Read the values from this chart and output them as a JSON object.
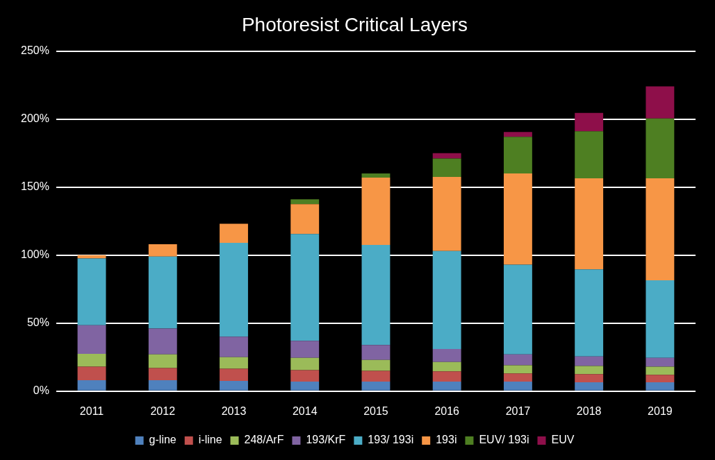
{
  "chart_data": {
    "type": "bar",
    "title": "Photoresist Critical Layers",
    "stacked": true,
    "categories": [
      "2011",
      "2012",
      "2013",
      "2014",
      "2015",
      "2016",
      "2017",
      "2018",
      "2019"
    ],
    "series": [
      {
        "name": "g-line",
        "color": "#4f81bd",
        "values": [
          8,
          8,
          7.5,
          7,
          7,
          7,
          7,
          6.5,
          6.5
        ]
      },
      {
        "name": "i-line",
        "color": "#c0504d",
        "values": [
          10,
          9,
          9,
          8.5,
          8,
          7.5,
          6,
          6,
          5.5
        ]
      },
      {
        "name": "248/ArF",
        "color": "#9bbb59",
        "values": [
          9.5,
          10,
          8.5,
          9,
          8,
          7,
          6,
          6,
          6
        ]
      },
      {
        "name": "193/KrF",
        "color": "#8064a2",
        "values": [
          21,
          19,
          15,
          12.5,
          11,
          9.5,
          8,
          7,
          6.5
        ]
      },
      {
        "name": "193/ 193i",
        "color": "#4bacc6",
        "values": [
          49,
          53,
          69,
          78.5,
          73.5,
          72,
          66,
          64,
          57
        ]
      },
      {
        "name": "193i",
        "color": "#f79646",
        "values": [
          2.5,
          9,
          14,
          22,
          49.5,
          54.5,
          67,
          67,
          75
        ]
      },
      {
        "name": "EUV/ 193i",
        "color": "#4e7f22",
        "values": [
          null,
          null,
          null,
          3.5,
          3,
          13.5,
          27,
          34.5,
          44
        ]
      },
      {
        "name": "EUV",
        "color": "#8e0f4a",
        "values": [
          null,
          null,
          null,
          null,
          null,
          4,
          3.5,
          13.5,
          23.5
        ]
      }
    ],
    "ylim": [
      0,
      250
    ],
    "yticks": [
      {
        "value": 0,
        "label": "0%"
      },
      {
        "value": 50,
        "label": "50%"
      },
      {
        "value": 100,
        "label": "100%"
      },
      {
        "value": 150,
        "label": "150%"
      },
      {
        "value": 200,
        "label": "200%"
      },
      {
        "value": 250,
        "label": "250%"
      }
    ],
    "grid": "y",
    "legend": "bottom"
  }
}
